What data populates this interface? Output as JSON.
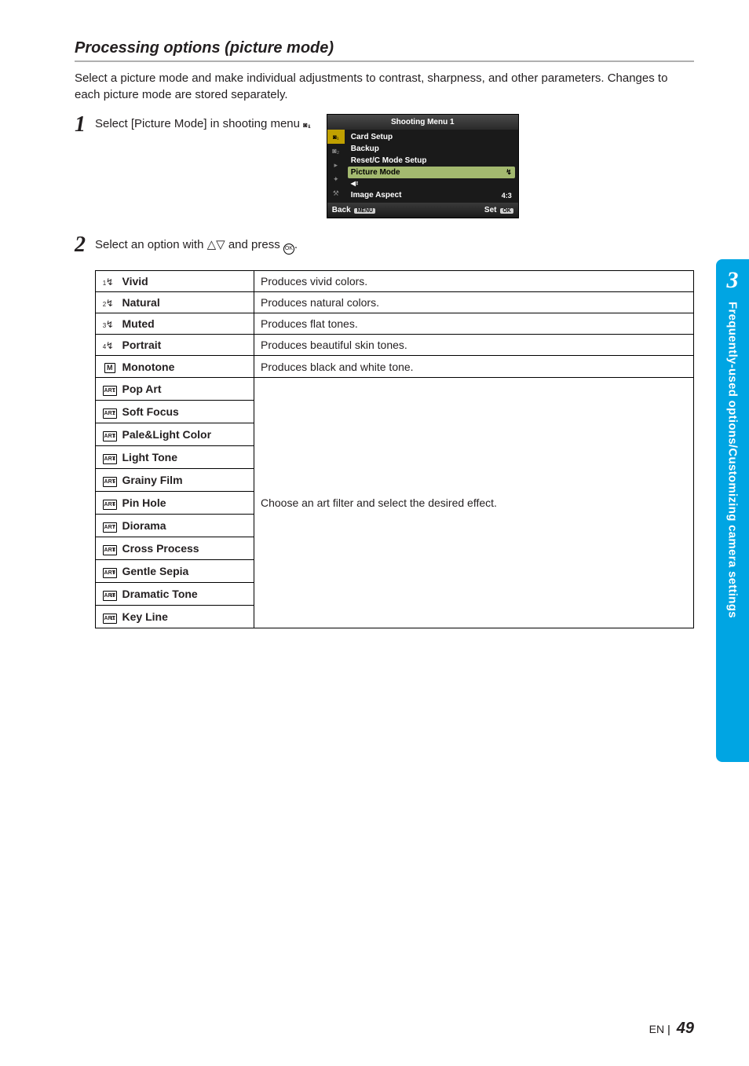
{
  "heading": "Processing options (picture mode)",
  "intro": "Select a picture mode and make individual adjustments to contrast, sharpness, and other parameters. Changes to each picture mode are stored separately.",
  "step1": {
    "num": "1",
    "text_before": "Select [Picture Mode] in shooting menu ",
    "text_after": "."
  },
  "camera_menu": {
    "title": "Shooting Menu 1",
    "items": [
      {
        "label": "Card Setup"
      },
      {
        "label": "Backup"
      },
      {
        "label": "Reset/C Mode Setup"
      },
      {
        "label": "Picture Mode",
        "highlight": true,
        "right": "↯"
      },
      {
        "label": "quality_icon",
        "is_icon": true
      },
      {
        "label": "Image Aspect",
        "right": "4:3"
      }
    ],
    "back": "Back",
    "back_pill": "MENU",
    "set": "Set",
    "set_pill": "OK"
  },
  "step2": {
    "num": "2",
    "text_before": "Select an option with ",
    "arrows": "△▽",
    "text_mid": " and press ",
    "text_after": "."
  },
  "picture_modes_single": [
    {
      "icon_type": "swoosh",
      "icon_sub": "1",
      "label": "Vivid",
      "desc": "Produces vivid colors."
    },
    {
      "icon_type": "swoosh",
      "icon_sub": "2",
      "label": "Natural",
      "desc": "Produces natural colors."
    },
    {
      "icon_type": "swoosh",
      "icon_sub": "3",
      "label": "Muted",
      "desc": "Produces flat tones."
    },
    {
      "icon_type": "swoosh",
      "icon_sub": "4",
      "label": "Portrait",
      "desc": "Produces beautiful skin tones."
    },
    {
      "icon_type": "mono",
      "icon_text": "M",
      "label": "Monotone",
      "desc": "Produces black and white tone."
    }
  ],
  "art_filters": {
    "rows": [
      {
        "sub": "1",
        "label": "Pop Art"
      },
      {
        "sub": "2",
        "label": "Soft Focus"
      },
      {
        "sub": "3",
        "label": "Pale&Light Color"
      },
      {
        "sub": "4",
        "label": "Light Tone"
      },
      {
        "sub": "5",
        "label": "Grainy Film"
      },
      {
        "sub": "6",
        "label": "Pin Hole"
      },
      {
        "sub": "7",
        "label": "Diorama"
      },
      {
        "sub": "8",
        "label": "Cross Process"
      },
      {
        "sub": "9",
        "label": "Gentle Sepia"
      },
      {
        "sub": "10",
        "label": "Dramatic Tone"
      },
      {
        "sub": "11",
        "label": "Key Line"
      }
    ],
    "desc": "Choose an art filter and select the desired effect."
  },
  "sidebar": {
    "chapter": "3",
    "title": "Frequently-used options/Customizing camera settings"
  },
  "footer": {
    "lang": "EN",
    "page": "49"
  },
  "colors": {
    "tab_bg": "#00a5e3",
    "menu_highlight": "#a3b96f",
    "menu_active_tab": "#c0a000"
  }
}
